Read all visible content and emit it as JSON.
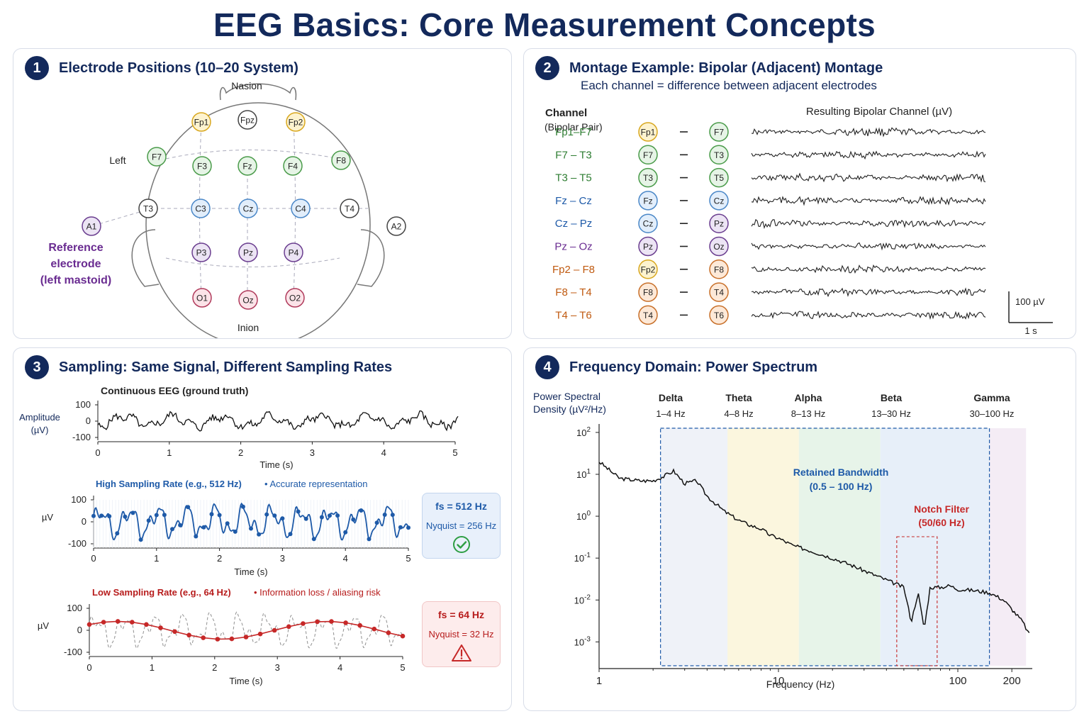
{
  "title": "EEG Basics: Core Measurement Concepts",
  "panel1": {
    "badge": "1",
    "title": "Electrode Positions (10–20 System)",
    "nasion": "Nasion",
    "inion": "Inion",
    "left_label": "Left",
    "reference_note": [
      "Reference",
      "electrode",
      "(left mastoid)"
    ],
    "electrodes": [
      {
        "id": "Fp1",
        "group": "yellow"
      },
      {
        "id": "Fpz",
        "group": "white"
      },
      {
        "id": "Fp2",
        "group": "yellow"
      },
      {
        "id": "F7",
        "group": "green"
      },
      {
        "id": "F3",
        "group": "green"
      },
      {
        "id": "Fz",
        "group": "green"
      },
      {
        "id": "F4",
        "group": "green"
      },
      {
        "id": "F8",
        "group": "green"
      },
      {
        "id": "T3",
        "group": "white"
      },
      {
        "id": "C3",
        "group": "blue"
      },
      {
        "id": "Cz",
        "group": "blue"
      },
      {
        "id": "C4",
        "group": "blue"
      },
      {
        "id": "T4",
        "group": "white"
      },
      {
        "id": "P3",
        "group": "purple"
      },
      {
        "id": "Pz",
        "group": "purple"
      },
      {
        "id": "P4",
        "group": "purple"
      },
      {
        "id": "O1",
        "group": "pink"
      },
      {
        "id": "Oz",
        "group": "pink"
      },
      {
        "id": "O2",
        "group": "pink"
      },
      {
        "id": "A1",
        "group": "purple"
      },
      {
        "id": "A2",
        "group": "white"
      }
    ]
  },
  "panel2": {
    "badge": "2",
    "title": "Montage Example: Bipolar (Adjacent) Montage",
    "subtitle": "Each channel = difference between adjacent electrodes",
    "col_channel": "Channel",
    "col_pair": "(Bipolar Pair)",
    "col_result": "Resulting Bipolar Channel (µV)",
    "scale_v": "100 µV",
    "scale_t": "1 s",
    "channels": [
      {
        "name": "Fp1–F7",
        "a": "Fp1",
        "b": "F7",
        "ca": "yellow",
        "cb": "green",
        "color": "#2e7d32"
      },
      {
        "name": "F7 – T3",
        "a": "F7",
        "b": "T3",
        "ca": "green",
        "cb": "green",
        "color": "#2e7d32"
      },
      {
        "name": "T3 – T5",
        "a": "T3",
        "b": "T5",
        "ca": "green",
        "cb": "green",
        "color": "#2e7d32"
      },
      {
        "name": "Fz – Cz",
        "a": "Fz",
        "b": "Cz",
        "ca": "blue",
        "cb": "blue",
        "color": "#1e5aa8"
      },
      {
        "name": "Cz – Pz",
        "a": "Cz",
        "b": "Pz",
        "ca": "blue",
        "cb": "purple",
        "color": "#1e5aa8"
      },
      {
        "name": "Pz – Oz",
        "a": "Pz",
        "b": "Oz",
        "ca": "purple",
        "cb": "purple",
        "color": "#6a2c91"
      },
      {
        "name": "Fp2 – F8",
        "a": "Fp2",
        "b": "F8",
        "ca": "yellow",
        "cb": "orange",
        "color": "#c05a10"
      },
      {
        "name": "F8 – T4",
        "a": "F8",
        "b": "T4",
        "ca": "orange",
        "cb": "orange",
        "color": "#c05a10"
      },
      {
        "name": "T4 – T6",
        "a": "T4",
        "b": "T6",
        "ca": "orange",
        "cb": "orange",
        "color": "#c05a10"
      }
    ]
  },
  "panel3": {
    "badge": "3",
    "title": "Sampling: Same Signal, Different Sampling Rates",
    "continuous_title": "Continuous EEG (ground truth)",
    "amp_label": [
      "Amplitude",
      "(µV)"
    ],
    "uv_label": "µV",
    "y_ticks": [
      "100",
      "0",
      "-100"
    ],
    "x_ticks": [
      "0",
      "1",
      "2",
      "3",
      "4",
      "5"
    ],
    "time_label": "Time (s)",
    "high_title": "High Sampling Rate (e.g., 512 Hz)",
    "high_note": "Accurate representation",
    "low_title": "Low Sampling Rate (e.g., 64 Hz)",
    "low_note": "Information loss / aliasing risk",
    "high_box": {
      "fs": "fs = 512 Hz",
      "nyq": "Nyquist = 256 Hz"
    },
    "low_box": {
      "fs": "fs = 64 Hz",
      "nyq": "Nyquist = 32 Hz"
    }
  },
  "panel4": {
    "badge": "4",
    "title": "Frequency Domain: Power Spectrum",
    "ylabel_lines": [
      "Power Spectral",
      "Density (µV²/Hz)"
    ],
    "xlabel": "Frequency (Hz)",
    "bands": [
      {
        "name": "Delta",
        "range": "1–4 Hz"
      },
      {
        "name": "Theta",
        "range": "4–8 Hz"
      },
      {
        "name": "Alpha",
        "range": "8–13 Hz"
      },
      {
        "name": "Beta",
        "range": "13–30 Hz"
      },
      {
        "name": "Gamma",
        "range": "30–100 Hz"
      }
    ],
    "y_ticks": [
      "10",
      "10",
      "10",
      "10",
      "10",
      "10"
    ],
    "y_exps": [
      "2",
      "1",
      "0",
      "-1",
      "-2",
      "-3"
    ],
    "x_ticks": [
      "1",
      "10",
      "100",
      "200"
    ],
    "retained_lines": [
      "Retained Bandwidth",
      "(0.5 – 100 Hz)"
    ],
    "notch_lines": [
      "Notch Filter",
      "(50/60 Hz)"
    ]
  },
  "chart_data": {
    "type": "line",
    "title": "Frequency Domain: Power Spectrum",
    "xlabel": "Frequency (Hz)",
    "ylabel": "Power Spectral Density (µV²/Hz)",
    "x_scale": "log",
    "y_scale": "log",
    "xlim": [
      1,
      260
    ],
    "ylim": [
      0.0005,
      100
    ],
    "x": [
      1,
      1.3,
      1.7,
      2,
      2.3,
      2.6,
      3,
      3.5,
      4,
      5,
      6,
      7,
      8,
      9,
      10,
      12,
      15,
      20,
      25,
      30,
      40,
      50,
      55,
      60,
      65,
      70,
      80,
      90,
      100,
      120,
      150,
      180,
      200,
      230,
      250
    ],
    "y": [
      20,
      8,
      7,
      7,
      9,
      12,
      6,
      7,
      3,
      1.3,
      0.8,
      0.6,
      0.5,
      0.35,
      0.3,
      0.2,
      0.15,
      0.1,
      0.07,
      0.05,
      0.03,
      0.02,
      0.003,
      0.015,
      0.002,
      0.02,
      0.02,
      0.022,
      0.018,
      0.017,
      0.015,
      0.01,
      0.006,
      0.003,
      0.0015
    ]
  }
}
